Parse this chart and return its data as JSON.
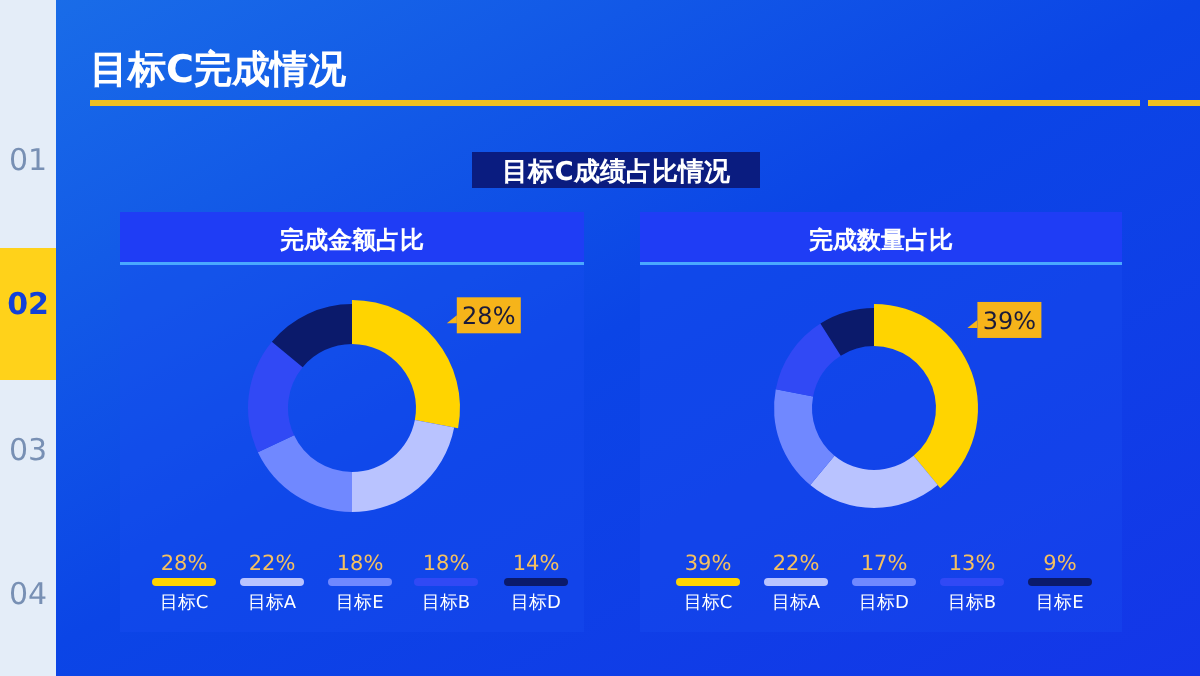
{
  "chart_data": [
    {
      "type": "donut",
      "title": "完成金额占比",
      "categories": [
        "目标C",
        "目标A",
        "目标E",
        "目标B",
        "目标D"
      ],
      "values": [
        28,
        22,
        18,
        18,
        14
      ],
      "colors": [
        "#ffd400",
        "#b9c3ff",
        "#7088ff",
        "#3149f5",
        "#0b1a6b"
      ],
      "value_labels": [
        "28%",
        "22%",
        "18%",
        "18%",
        "14%"
      ],
      "legend": "bottom",
      "annotations": [
        "目标C完成情况",
        "目标C成绩占比情况",
        "01",
        "02",
        "03",
        "04",
        {
          "text": "28%",
          "x": "目标C"
        }
      ]
    },
    {
      "type": "donut",
      "title": "完成数量占比",
      "categories": [
        "目标C",
        "目标A",
        "目标D",
        "目标B",
        "目标E"
      ],
      "values": [
        39,
        22,
        17,
        13,
        9
      ],
      "colors": [
        "#ffd400",
        "#b9c3ff",
        "#7088ff",
        "#3149f5",
        "#0b1a6b"
      ],
      "value_labels": [
        "39%",
        "22%",
        "17%",
        "13%",
        "9%"
      ],
      "legend": "bottom",
      "annotations": [
        {
          "text": "39%",
          "x": "目标C"
        }
      ]
    }
  ]
}
